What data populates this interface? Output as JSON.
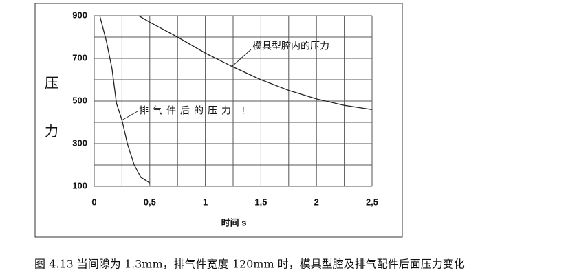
{
  "chart_data": {
    "type": "line",
    "caption": "图 4.13 当间隙为 1.3mm，排气件宽度 120mm 时，模具型腔及排气配件后面压力变化",
    "x_label": "时间 s",
    "y_label_chars": [
      "压",
      "力"
    ],
    "series": [
      {
        "name": "模具型腔内的压力",
        "color": "#222222",
        "x": [
          0.4,
          0.5,
          0.75,
          1,
          1.25,
          1.5,
          1.75,
          2,
          2.25,
          2.5
        ],
        "values": [
          900,
          870,
          800,
          725,
          660,
          600,
          550,
          510,
          480,
          460
        ]
      },
      {
        "name": "排气件后的压力 !",
        "color": "#222222",
        "x": [
          0.05,
          0.11,
          0.16,
          0.2,
          0.25,
          0.3,
          0.36,
          0.42,
          0.5
        ],
        "values": [
          900,
          780,
          652,
          490,
          410,
          297,
          200,
          142,
          116
        ]
      }
    ],
    "xlim": [
      0,
      2.5
    ],
    "ylim": [
      100,
      900
    ],
    "xticks": [
      0,
      {
        "value": 0.5,
        "label": "0,5"
      },
      1,
      {
        "value": 1.5,
        "label": "1,5"
      },
      2,
      {
        "value": 2.5,
        "label": "2,5"
      }
    ],
    "yticks": [
      100,
      300,
      500,
      700,
      900
    ],
    "x_gridlines": [
      0,
      0.25,
      0.5,
      0.75,
      1,
      1.25,
      1.5,
      1.75,
      2,
      2.25,
      2.5
    ],
    "y_gridlines": [
      100,
      200,
      300,
      400,
      500,
      600,
      700,
      800,
      900
    ],
    "grid": true
  }
}
